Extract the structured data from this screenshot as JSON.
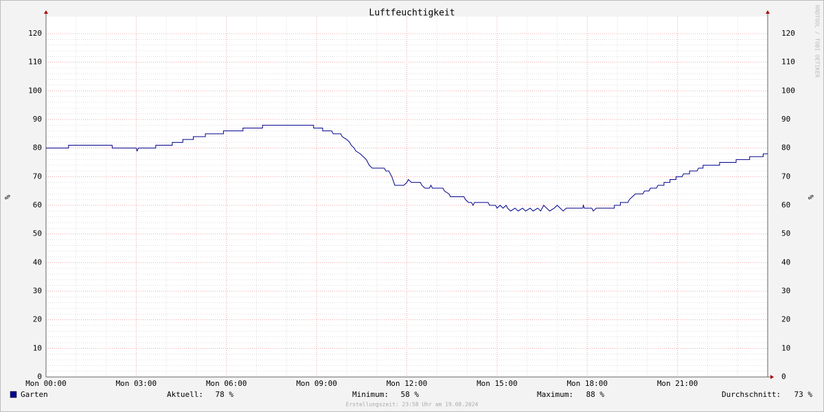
{
  "chart_data": {
    "type": "line",
    "title": "Luftfeuchtigkeit",
    "y_label": "%",
    "watermark": "RRDTOOL / TOBI OETIKER",
    "x": [
      0,
      0.75,
      0.75,
      2.2,
      2.2,
      3.0,
      3.03,
      3.07,
      3.65,
      3.65,
      4.2,
      4.2,
      4.55,
      4.55,
      4.9,
      4.9,
      5.3,
      5.3,
      5.9,
      5.9,
      6.55,
      6.55,
      7.2,
      7.2,
      8.9,
      8.9,
      9.2,
      9.2,
      9.5,
      9.55,
      9.8,
      9.85,
      10.0,
      10.1,
      10.15,
      10.25,
      10.3,
      10.45,
      10.55,
      10.65,
      10.75,
      10.85,
      11.25,
      11.3,
      11.4,
      11.5,
      11.6,
      11.9,
      12.0,
      12.05,
      12.15,
      12.45,
      12.5,
      12.6,
      12.75,
      12.8,
      12.85,
      13.2,
      13.25,
      13.4,
      13.45,
      13.9,
      13.95,
      14.05,
      14.15,
      14.2,
      14.25,
      14.7,
      14.75,
      14.95,
      15.0,
      15.1,
      15.2,
      15.3,
      15.35,
      15.45,
      15.6,
      15.7,
      15.85,
      15.95,
      16.1,
      16.2,
      16.35,
      16.45,
      16.55,
      16.65,
      16.75,
      16.9,
      17.0,
      17.1,
      17.2,
      17.3,
      17.85,
      17.87,
      17.9,
      18.15,
      18.2,
      18.3,
      18.9,
      18.9,
      19.1,
      19.1,
      19.35,
      19.4,
      19.5,
      19.6,
      19.85,
      19.9,
      20.05,
      20.1,
      20.3,
      20.35,
      20.55,
      20.55,
      20.75,
      20.75,
      20.95,
      20.95,
      21.15,
      21.2,
      21.4,
      21.4,
      21.65,
      21.7,
      21.85,
      21.85,
      22.4,
      22.4,
      22.95,
      22.95,
      23.4,
      23.4,
      23.85,
      23.85,
      24
    ],
    "series": [
      {
        "name": "Garten",
        "color": "#00008b",
        "values": [
          80,
          80,
          81,
          81,
          80,
          80,
          79,
          80,
          80,
          81,
          81,
          82,
          82,
          83,
          83,
          84,
          84,
          85,
          85,
          86,
          86,
          87,
          87,
          88,
          88,
          87,
          87,
          86,
          86,
          85,
          85,
          84,
          83,
          82,
          81,
          80,
          79,
          78,
          77,
          76,
          74,
          73,
          73,
          72,
          72,
          70,
          67,
          67,
          68,
          69,
          68,
          68,
          67,
          66,
          66,
          67,
          66,
          66,
          65,
          64,
          63,
          63,
          62,
          61,
          61,
          60,
          61,
          61,
          60,
          60,
          59,
          60,
          59,
          60,
          59,
          58,
          59,
          58,
          59,
          58,
          59,
          58,
          59,
          58,
          60,
          59,
          58,
          59,
          60,
          59,
          58,
          59,
          59,
          60,
          59,
          59,
          58,
          59,
          59,
          60,
          60,
          61,
          61,
          62,
          63,
          64,
          64,
          65,
          65,
          66,
          66,
          67,
          67,
          68,
          68,
          69,
          69,
          70,
          70,
          71,
          71,
          72,
          72,
          73,
          73,
          74,
          74,
          75,
          75,
          76,
          76,
          77,
          77,
          78,
          78
        ]
      }
    ],
    "xlim": [
      0,
      24
    ],
    "xticks": [
      {
        "value": 0,
        "label": "Mon 00:00"
      },
      {
        "value": 3,
        "label": "Mon 03:00"
      },
      {
        "value": 6,
        "label": "Mon 06:00"
      },
      {
        "value": 9,
        "label": "Mon 09:00"
      },
      {
        "value": 12,
        "label": "Mon 12:00"
      },
      {
        "value": 15,
        "label": "Mon 15:00"
      },
      {
        "value": 18,
        "label": "Mon 18:00"
      },
      {
        "value": 21,
        "label": "Mon 21:00"
      }
    ],
    "ylim": [
      0,
      126
    ],
    "yticks": [
      0,
      10,
      20,
      30,
      40,
      50,
      60,
      70,
      80,
      90,
      100,
      110,
      120
    ],
    "grid": true,
    "stats": [
      {
        "label": "Aktuell:",
        "value": "78 %"
      },
      {
        "label": "Minimum:",
        "value": "58 %"
      },
      {
        "label": "Maximum:",
        "value": "88 %"
      },
      {
        "label": "Durchschnitt:",
        "value": "73 %"
      }
    ],
    "footer": "Erstellungszeit: 23:58 Uhr am 19.08.2024"
  }
}
